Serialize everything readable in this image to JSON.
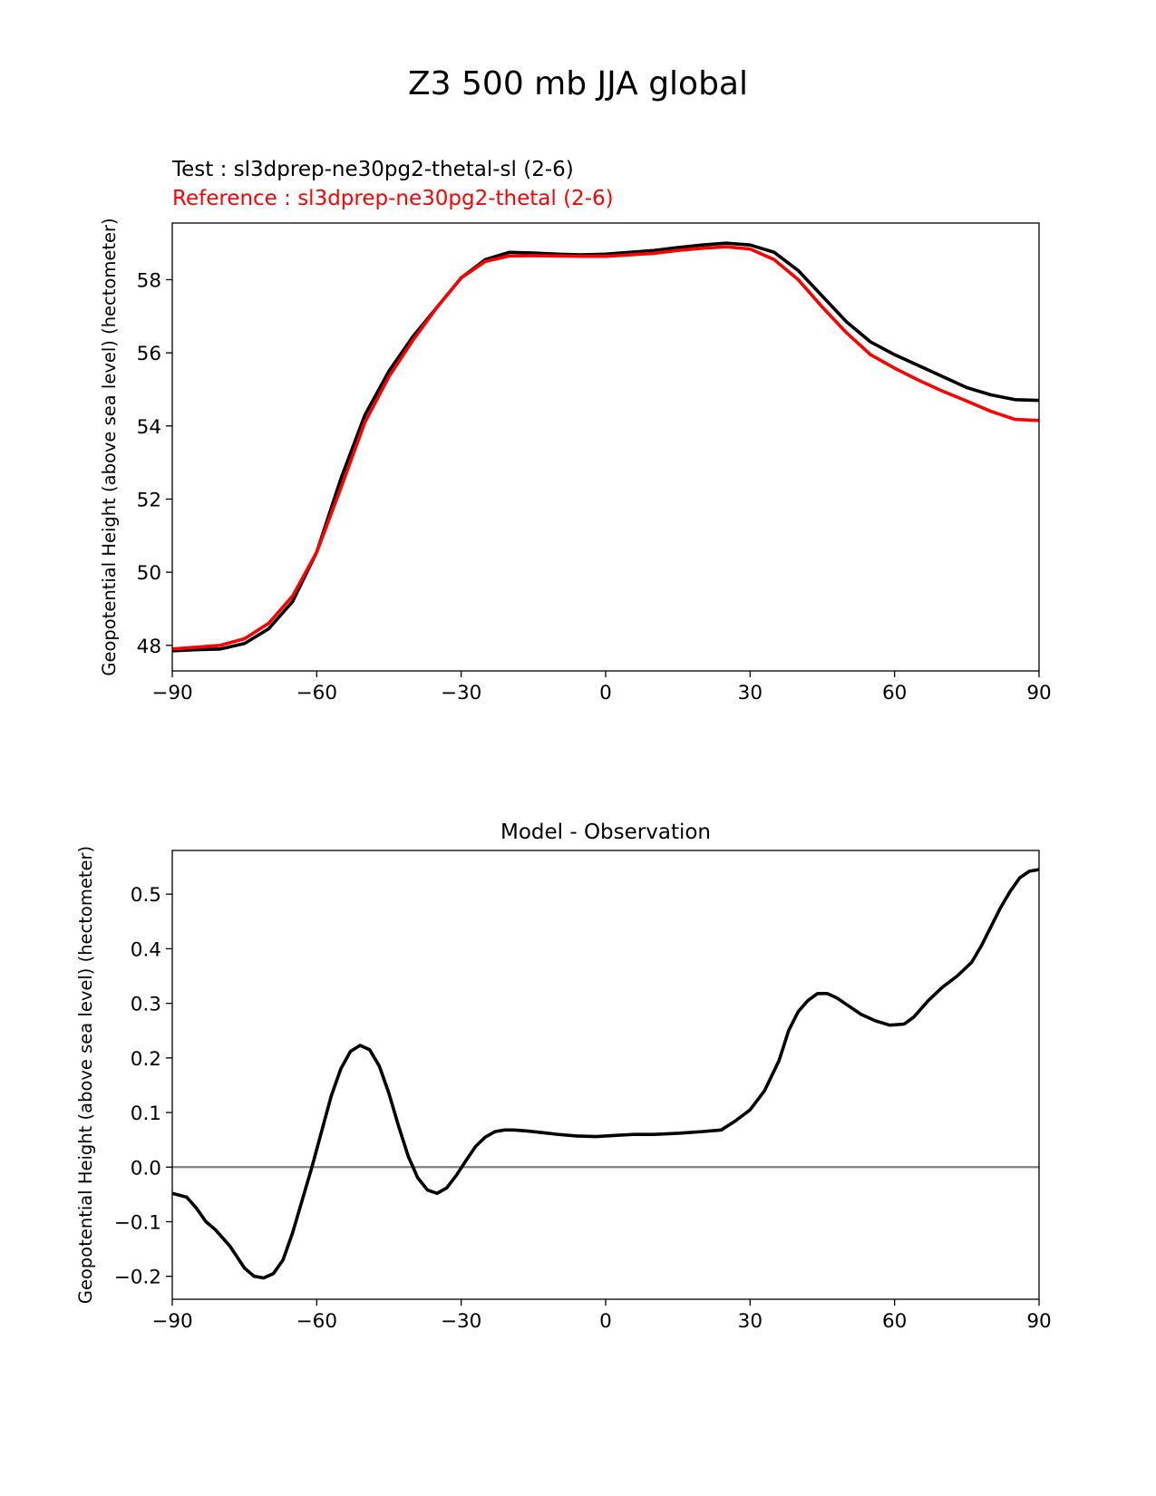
{
  "figure": {
    "suptitle": "Z3 500 mb JJA global",
    "legend": {
      "test_label": "Test : sl3dprep-ne30pg2-thetal-sl (2-6)",
      "ref_label": "Reference : sl3dprep-ne30pg2-thetal (2-6)"
    }
  },
  "chart_data": [
    {
      "type": "line",
      "title": "",
      "xlabel": "",
      "ylabel": "Geopotential Height (above sea level) (hectometer)",
      "xlim": [
        -90,
        90
      ],
      "ylim": [
        47.3,
        59.55
      ],
      "xticks": [
        -90,
        -60,
        -30,
        0,
        30,
        60,
        90
      ],
      "xtick_labels": [
        "−90",
        "−60",
        "−30",
        "0",
        "30",
        "60",
        "90"
      ],
      "yticks": [
        48,
        50,
        52,
        54,
        56,
        58
      ],
      "ytick_labels": [
        "48",
        "50",
        "52",
        "54",
        "56",
        "58"
      ],
      "grid": false,
      "series": [
        {
          "name": "Test : sl3dprep-ne30pg2-thetal-sl (2-6)",
          "color": "#000000",
          "x": [
            -90,
            -85,
            -80,
            -75,
            -70,
            -65,
            -60,
            -55,
            -50,
            -45,
            -40,
            -35,
            -30,
            -25,
            -20,
            -15,
            -10,
            -5,
            0,
            5,
            10,
            15,
            20,
            25,
            30,
            35,
            40,
            45,
            50,
            55,
            60,
            65,
            70,
            75,
            80,
            85,
            90
          ],
          "y": [
            47.85,
            47.88,
            47.9,
            48.05,
            48.45,
            49.2,
            50.55,
            52.55,
            54.3,
            55.5,
            56.45,
            57.25,
            58.05,
            58.55,
            58.75,
            58.73,
            58.7,
            58.68,
            58.7,
            58.75,
            58.8,
            58.88,
            58.95,
            59.0,
            58.95,
            58.75,
            58.25,
            57.55,
            56.85,
            56.3,
            55.95,
            55.65,
            55.35,
            55.05,
            54.85,
            54.72,
            54.7
          ]
        },
        {
          "name": "Reference : sl3dprep-ne30pg2-thetal (2-6)",
          "color": "#ff0000",
          "x": [
            -90,
            -85,
            -80,
            -75,
            -70,
            -65,
            -60,
            -55,
            -50,
            -45,
            -40,
            -35,
            -30,
            -25,
            -20,
            -15,
            -10,
            -5,
            0,
            5,
            10,
            15,
            20,
            25,
            30,
            35,
            40,
            45,
            50,
            55,
            60,
            65,
            70,
            75,
            80,
            85,
            90
          ],
          "y": [
            47.9,
            47.95,
            48.0,
            48.18,
            48.6,
            49.35,
            50.55,
            52.3,
            54.1,
            55.35,
            56.35,
            57.25,
            58.05,
            58.5,
            58.65,
            58.66,
            58.65,
            58.64,
            58.64,
            58.68,
            58.72,
            58.8,
            58.86,
            58.9,
            58.84,
            58.55,
            58.0,
            57.25,
            56.55,
            55.95,
            55.58,
            55.25,
            54.95,
            54.68,
            54.4,
            54.18,
            54.15
          ]
        }
      ]
    },
    {
      "type": "line",
      "title": "Model - Observation",
      "xlabel": "",
      "ylabel": "Geopotential Height (above sea level) (hectometer)",
      "xlim": [
        -90,
        90
      ],
      "ylim": [
        -0.242,
        0.58
      ],
      "xticks": [
        -90,
        -60,
        -30,
        0,
        30,
        60,
        90
      ],
      "xtick_labels": [
        "−90",
        "−60",
        "−30",
        "0",
        "30",
        "60",
        "90"
      ],
      "yticks": [
        -0.2,
        -0.1,
        0.0,
        0.1,
        0.2,
        0.3,
        0.4,
        0.5
      ],
      "ytick_labels": [
        "−0.2",
        "−0.1",
        "0.0",
        "0.1",
        "0.2",
        "0.3",
        "0.4",
        "0.5"
      ],
      "grid": false,
      "zero_line_color": "#808080",
      "series": [
        {
          "color": "#000000",
          "x": [
            -90,
            -87,
            -85,
            -83,
            -81,
            -78,
            -75,
            -73,
            -71,
            -69,
            -67,
            -65,
            -63,
            -61,
            -59,
            -57,
            -55,
            -53,
            -51,
            -49,
            -47,
            -45,
            -43,
            -41,
            -39,
            -37,
            -35,
            -33,
            -31,
            -29,
            -27,
            -25,
            -23,
            -21,
            -19,
            -16,
            -13,
            -10,
            -6,
            -2,
            2,
            6,
            10,
            15,
            20,
            24,
            27,
            30,
            33,
            36,
            38,
            40,
            42,
            44,
            46,
            48,
            50,
            53,
            56,
            59,
            62,
            64,
            67,
            70,
            73,
            76,
            78,
            80,
            82,
            84,
            86,
            88,
            90
          ],
          "y": [
            -0.048,
            -0.055,
            -0.075,
            -0.1,
            -0.115,
            -0.145,
            -0.185,
            -0.2,
            -0.203,
            -0.195,
            -0.17,
            -0.12,
            -0.06,
            0.0,
            0.065,
            0.13,
            0.18,
            0.212,
            0.223,
            0.215,
            0.185,
            0.135,
            0.075,
            0.02,
            -0.02,
            -0.042,
            -0.048,
            -0.038,
            -0.015,
            0.012,
            0.038,
            0.055,
            0.065,
            0.068,
            0.068,
            0.066,
            0.063,
            0.06,
            0.057,
            0.056,
            0.058,
            0.06,
            0.06,
            0.062,
            0.065,
            0.068,
            0.085,
            0.105,
            0.14,
            0.195,
            0.25,
            0.285,
            0.305,
            0.318,
            0.318,
            0.31,
            0.298,
            0.28,
            0.268,
            0.26,
            0.262,
            0.275,
            0.305,
            0.33,
            0.35,
            0.375,
            0.405,
            0.44,
            0.475,
            0.505,
            0.53,
            0.542,
            0.545
          ]
        }
      ]
    }
  ]
}
